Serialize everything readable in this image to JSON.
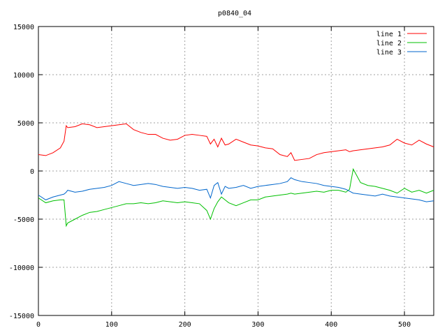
{
  "chart_data": {
    "type": "line",
    "title": "p0840_04",
    "xlabel": "",
    "ylabel": "",
    "xlim": [
      0,
      540
    ],
    "ylim": [
      -15000,
      15000
    ],
    "grid": true,
    "legend_position": "top-right",
    "x_ticks": [
      0,
      100,
      200,
      300,
      400,
      500
    ],
    "y_ticks": [
      -15000,
      -10000,
      -5000,
      0,
      5000,
      10000,
      15000
    ],
    "x_tick_labels": [
      "0",
      "100",
      "200",
      "300",
      "400",
      "500"
    ],
    "y_tick_labels": [
      "-15000",
      "-10000",
      "-5000",
      "0",
      "5000",
      "10000",
      "15000"
    ],
    "x": [
      0,
      10,
      20,
      30,
      35,
      38,
      40,
      50,
      60,
      70,
      80,
      90,
      100,
      110,
      120,
      130,
      140,
      150,
      160,
      170,
      180,
      190,
      200,
      210,
      220,
      230,
      235,
      240,
      245,
      250,
      255,
      260,
      270,
      280,
      290,
      300,
      310,
      320,
      330,
      340,
      345,
      350,
      360,
      370,
      380,
      390,
      400,
      410,
      420,
      425,
      430,
      440,
      450,
      460,
      470,
      480,
      490,
      500,
      510,
      520,
      530,
      540
    ],
    "series": [
      {
        "name": "line 1",
        "color": "#ff0000",
        "values": [
          1700,
          1600,
          1900,
          2400,
          3100,
          4700,
          4500,
          4600,
          4900,
          4800,
          4500,
          4600,
          4700,
          4800,
          4900,
          4300,
          4000,
          3800,
          3800,
          3400,
          3200,
          3300,
          3700,
          3800,
          3700,
          3600,
          2800,
          3300,
          2500,
          3400,
          2700,
          2800,
          3300,
          3000,
          2700,
          2600,
          2400,
          2300,
          1700,
          1500,
          1900,
          1100,
          1200,
          1300,
          1700,
          1900,
          2000,
          2100,
          2200,
          2000,
          2100,
          2200,
          2300,
          2400,
          2500,
          2700,
          3300,
          2900,
          2700,
          3200,
          2800,
          2500
        ]
      },
      {
        "name": "line 2",
        "color": "#00c000",
        "values": [
          -2800,
          -3300,
          -3100,
          -3000,
          -3000,
          -5700,
          -5400,
          -5000,
          -4600,
          -4300,
          -4200,
          -4000,
          -3800,
          -3600,
          -3400,
          -3400,
          -3300,
          -3400,
          -3300,
          -3100,
          -3200,
          -3300,
          -3200,
          -3300,
          -3400,
          -4100,
          -5000,
          -3900,
          -3200,
          -2700,
          -3000,
          -3300,
          -3600,
          -3300,
          -3000,
          -3000,
          -2700,
          -2600,
          -2500,
          -2400,
          -2300,
          -2400,
          -2300,
          -2200,
          -2100,
          -2200,
          -2000,
          -2000,
          -2200,
          -1900,
          200,
          -1200,
          -1500,
          -1600,
          -1800,
          -2000,
          -2300,
          -1800,
          -2200,
          -2000,
          -2300,
          -2000
        ]
      },
      {
        "name": "line 3",
        "color": "#0066cc",
        "values": [
          -2500,
          -3000,
          -2700,
          -2500,
          -2400,
          -2200,
          -2000,
          -2200,
          -2100,
          -1900,
          -1800,
          -1700,
          -1500,
          -1100,
          -1300,
          -1500,
          -1400,
          -1300,
          -1400,
          -1600,
          -1700,
          -1800,
          -1700,
          -1800,
          -2000,
          -1900,
          -2800,
          -1500,
          -1200,
          -2400,
          -1600,
          -1800,
          -1700,
          -1500,
          -1800,
          -1600,
          -1500,
          -1400,
          -1300,
          -1100,
          -700,
          -900,
          -1100,
          -1200,
          -1300,
          -1500,
          -1600,
          -1700,
          -1900,
          -2100,
          -2300,
          -2400,
          -2500,
          -2600,
          -2400,
          -2600,
          -2700,
          -2800,
          -2900,
          -3000,
          -3200,
          -3100
        ]
      }
    ]
  }
}
